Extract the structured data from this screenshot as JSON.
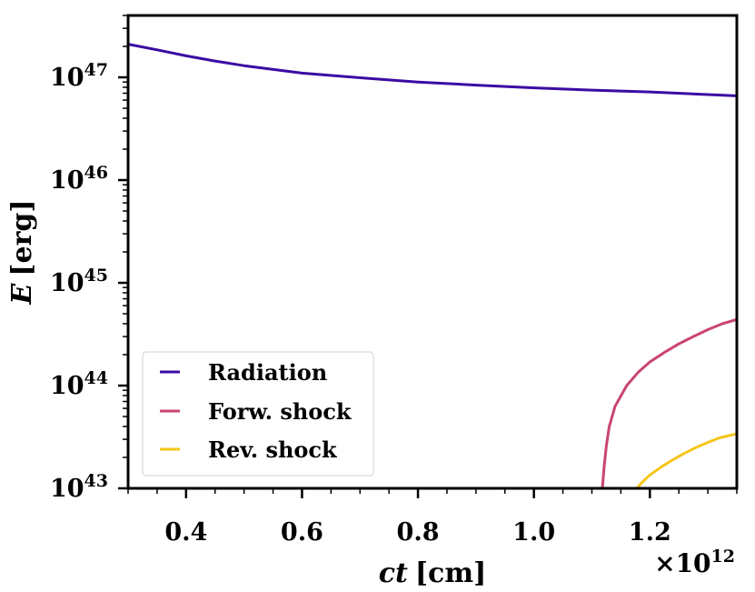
{
  "chart_data": {
    "type": "line",
    "xlabel_var": "ct",
    "xlabel_unit": "[cm]",
    "ylabel_var": "E",
    "ylabel_unit": "[erg]",
    "x_scale_base": "×10",
    "x_scale_exp": "12",
    "xlim": [
      0.3,
      1.35
    ],
    "yscale": "log",
    "ylim": [
      1e+43,
      4e+47
    ],
    "x_ticks": [
      {
        "value": 0.4,
        "label": "0.4"
      },
      {
        "value": 0.6,
        "label": "0.6"
      },
      {
        "value": 0.8,
        "label": "0.8"
      },
      {
        "value": 1.0,
        "label": "1.0"
      },
      {
        "value": 1.2,
        "label": "1.2"
      }
    ],
    "y_ticks": [
      {
        "value": 1e+43,
        "base": "10",
        "exp": "43"
      },
      {
        "value": 1e+44,
        "base": "10",
        "exp": "44"
      },
      {
        "value": 1e+45,
        "base": "10",
        "exp": "45"
      },
      {
        "value": 1e+46,
        "base": "10",
        "exp": "46"
      },
      {
        "value": 1e+47,
        "base": "10",
        "exp": "47"
      }
    ],
    "legend_position": "lower-left",
    "series": [
      {
        "name": "Radiation",
        "color": "#3a0ca3",
        "x": [
          0.3,
          0.35,
          0.4,
          0.45,
          0.5,
          0.6,
          0.7,
          0.8,
          0.9,
          1.0,
          1.1,
          1.2,
          1.3,
          1.35
        ],
        "y": [
          2.1e+47,
          1.85e+47,
          1.62e+47,
          1.44e+47,
          1.3e+47,
          1.1e+47,
          9.9e+46,
          9e+46,
          8.4e+46,
          7.9e+46,
          7.5e+46,
          7.2e+46,
          6.8e+46,
          6.6e+46
        ]
      },
      {
        "name": "Forw. shock",
        "color": "#c9456f",
        "x": [
          1.118,
          1.121,
          1.125,
          1.13,
          1.14,
          1.16,
          1.18,
          1.2,
          1.225,
          1.25,
          1.275,
          1.3,
          1.325,
          1.35
        ],
        "y": [
          1e+43,
          1.6e+43,
          2.6e+43,
          4e+43,
          6.3e+43,
          1e+44,
          1.35e+44,
          1.7e+44,
          2.1e+44,
          2.55e+44,
          3e+44,
          3.5e+44,
          4e+44,
          4.4e+44
        ]
      },
      {
        "name": "Rev. shock",
        "color": "#f5c518",
        "x": [
          1.178,
          1.185,
          1.2,
          1.22,
          1.24,
          1.26,
          1.28,
          1.3,
          1.32,
          1.35
        ],
        "y": [
          1e+43,
          1.12e+43,
          1.35e+43,
          1.62e+43,
          1.9e+43,
          2.2e+43,
          2.5e+43,
          2.8e+43,
          3.1e+43,
          3.4e+43
        ]
      }
    ]
  }
}
